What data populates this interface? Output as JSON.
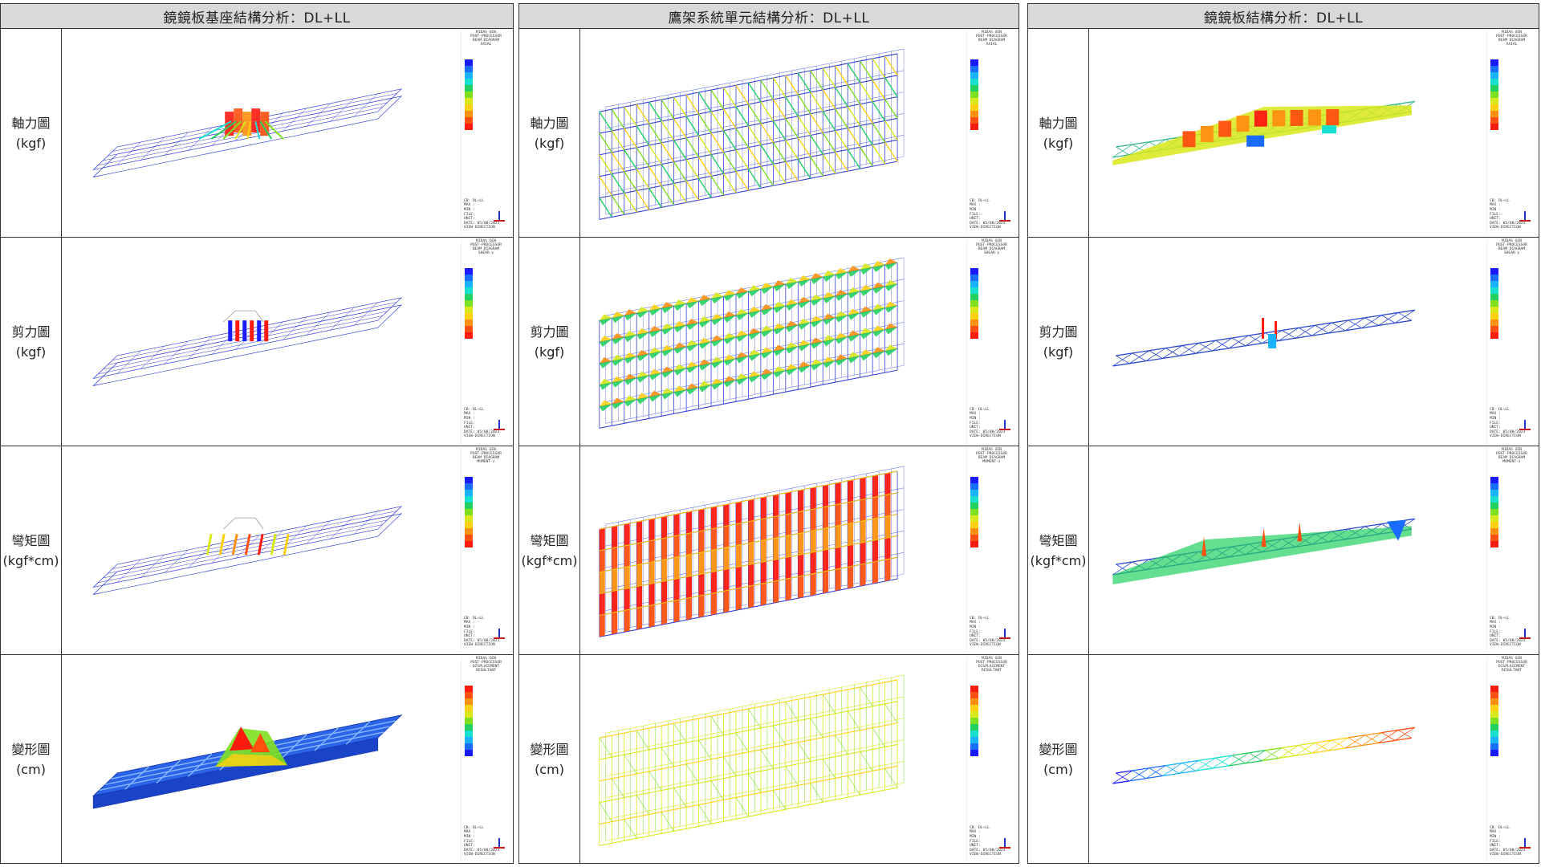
{
  "panels": [
    {
      "title": "鏡鏡板基座結構分析：DL+LL",
      "rows": [
        {
          "label": "軸力圖",
          "unit": "(kgf)",
          "legend_type": "axial"
        },
        {
          "label": "剪力圖",
          "unit": "(kgf)",
          "legend_type": "shear"
        },
        {
          "label": "彎矩圖",
          "unit": "(kgf*cm)",
          "legend_type": "moment"
        },
        {
          "label": "變形圖",
          "unit": "(cm)",
          "legend_type": "disp"
        }
      ]
    },
    {
      "title": "鷹架系統單元結構分析：DL+LL",
      "rows": [
        {
          "label": "軸力圖",
          "unit": "(kgf)",
          "legend_type": "axial"
        },
        {
          "label": "剪力圖",
          "unit": "(kgf)",
          "legend_type": "shear"
        },
        {
          "label": "彎矩圖",
          "unit": "(kgf*cm)",
          "legend_type": "moment"
        },
        {
          "label": "變形圖",
          "unit": "(cm)",
          "legend_type": "disp"
        }
      ]
    },
    {
      "title": "鏡鏡板結構分析：DL+LL",
      "rows": [
        {
          "label": "軸力圖",
          "unit": "(kgf)",
          "legend_type": "axial"
        },
        {
          "label": "剪力圖",
          "unit": "(kgf)",
          "legend_type": "shear"
        },
        {
          "label": "彎矩圖",
          "unit": "(kgf*cm)",
          "legend_type": "moment"
        },
        {
          "label": "變形圖",
          "unit": "(cm)",
          "legend_type": "disp"
        }
      ]
    }
  ],
  "legend": {
    "software": "MIDAS GEN",
    "header_axial": [
      "POST-PROCESSOR",
      "BEAM DIAGRAM",
      "AXIAL"
    ],
    "header_shear": [
      "POST-PROCESSOR",
      "BEAM DIAGRAM",
      "SHEAR-y"
    ],
    "header_moment": [
      "POST-PROCESSOR",
      "BEAM DIAGRAM",
      "MOMENT-z"
    ],
    "header_disp": [
      "POST-PROCESSOR",
      "DISPLACEMENT",
      "RESULTANT"
    ],
    "footer": [
      "CB: DL+LL",
      "MAX :",
      "MIN :",
      "FILE:",
      "UNIT:",
      "DATE: 05/08/2023",
      "VIEW-DIRECTION"
    ]
  },
  "colors": {
    "scale": [
      "#1a1aff",
      "#1a6cff",
      "#18b4ff",
      "#18e0d0",
      "#22d060",
      "#7ee020",
      "#d8e818",
      "#ffd010",
      "#ff9010",
      "#ff5010",
      "#ff1a10"
    ],
    "wire": "#3340d8",
    "border": "#333333",
    "title_bg": "#d9d9d9"
  }
}
